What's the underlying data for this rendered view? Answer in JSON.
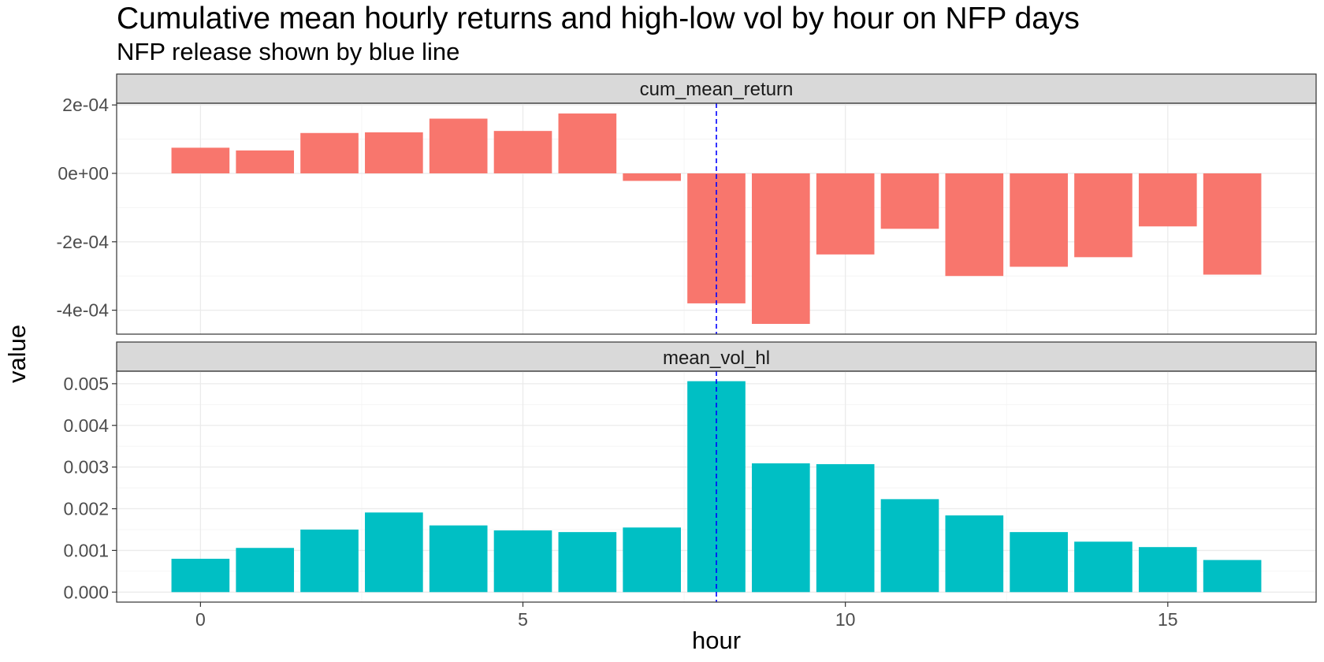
{
  "chart_data": {
    "type": "bar",
    "title": "Cumulative mean hourly returns and high-low vol by hour on NFP days",
    "subtitle": "NFP release shown by blue line",
    "xlabel": "hour",
    "ylabel": "value",
    "x_ticks": [
      0,
      5,
      10,
      15
    ],
    "xlim": [
      -1.3,
      17.3
    ],
    "reference_line": {
      "x": 8,
      "color": "#0000ff",
      "style": "dashed"
    },
    "grid": true,
    "facets": [
      {
        "name": "cum_mean_return",
        "color": "#f8766d",
        "ylim": [
          -0.00047,
          0.000205
        ],
        "y_ticks": [
          0.0002,
          0,
          -0.0002,
          -0.0004
        ],
        "y_tick_labels": [
          "2e-04",
          "0e+00",
          "-2e-04",
          "-4e-04"
        ],
        "x": [
          0,
          1,
          2,
          3,
          4,
          5,
          6,
          7,
          8,
          9,
          10,
          11,
          12,
          13,
          14,
          15,
          16
        ],
        "values": [
          7.5e-05,
          6.7e-05,
          0.000118,
          0.00012,
          0.00016,
          0.000124,
          0.000175,
          -2.2e-05,
          -0.00038,
          -0.00044,
          -0.000237,
          -0.000162,
          -0.0003,
          -0.000273,
          -0.000245,
          -0.000155,
          -0.000296
        ]
      },
      {
        "name": "mean_vol_hl",
        "color": "#00bfc4",
        "ylim": [
          -0.00024,
          0.0053
        ],
        "y_ticks": [
          0.005,
          0.004,
          0.003,
          0.002,
          0.001,
          0
        ],
        "y_tick_labels": [
          "0.005",
          "0.004",
          "0.003",
          "0.002",
          "0.001",
          "0.000"
        ],
        "x": [
          0,
          1,
          2,
          3,
          4,
          5,
          6,
          7,
          8,
          9,
          10,
          11,
          12,
          13,
          14,
          15,
          16
        ],
        "values": [
          0.0008,
          0.00106,
          0.0015,
          0.00191,
          0.0016,
          0.00148,
          0.00144,
          0.00155,
          0.00506,
          0.00309,
          0.00307,
          0.00223,
          0.00184,
          0.00144,
          0.00121,
          0.00108,
          0.00077
        ]
      }
    ]
  }
}
